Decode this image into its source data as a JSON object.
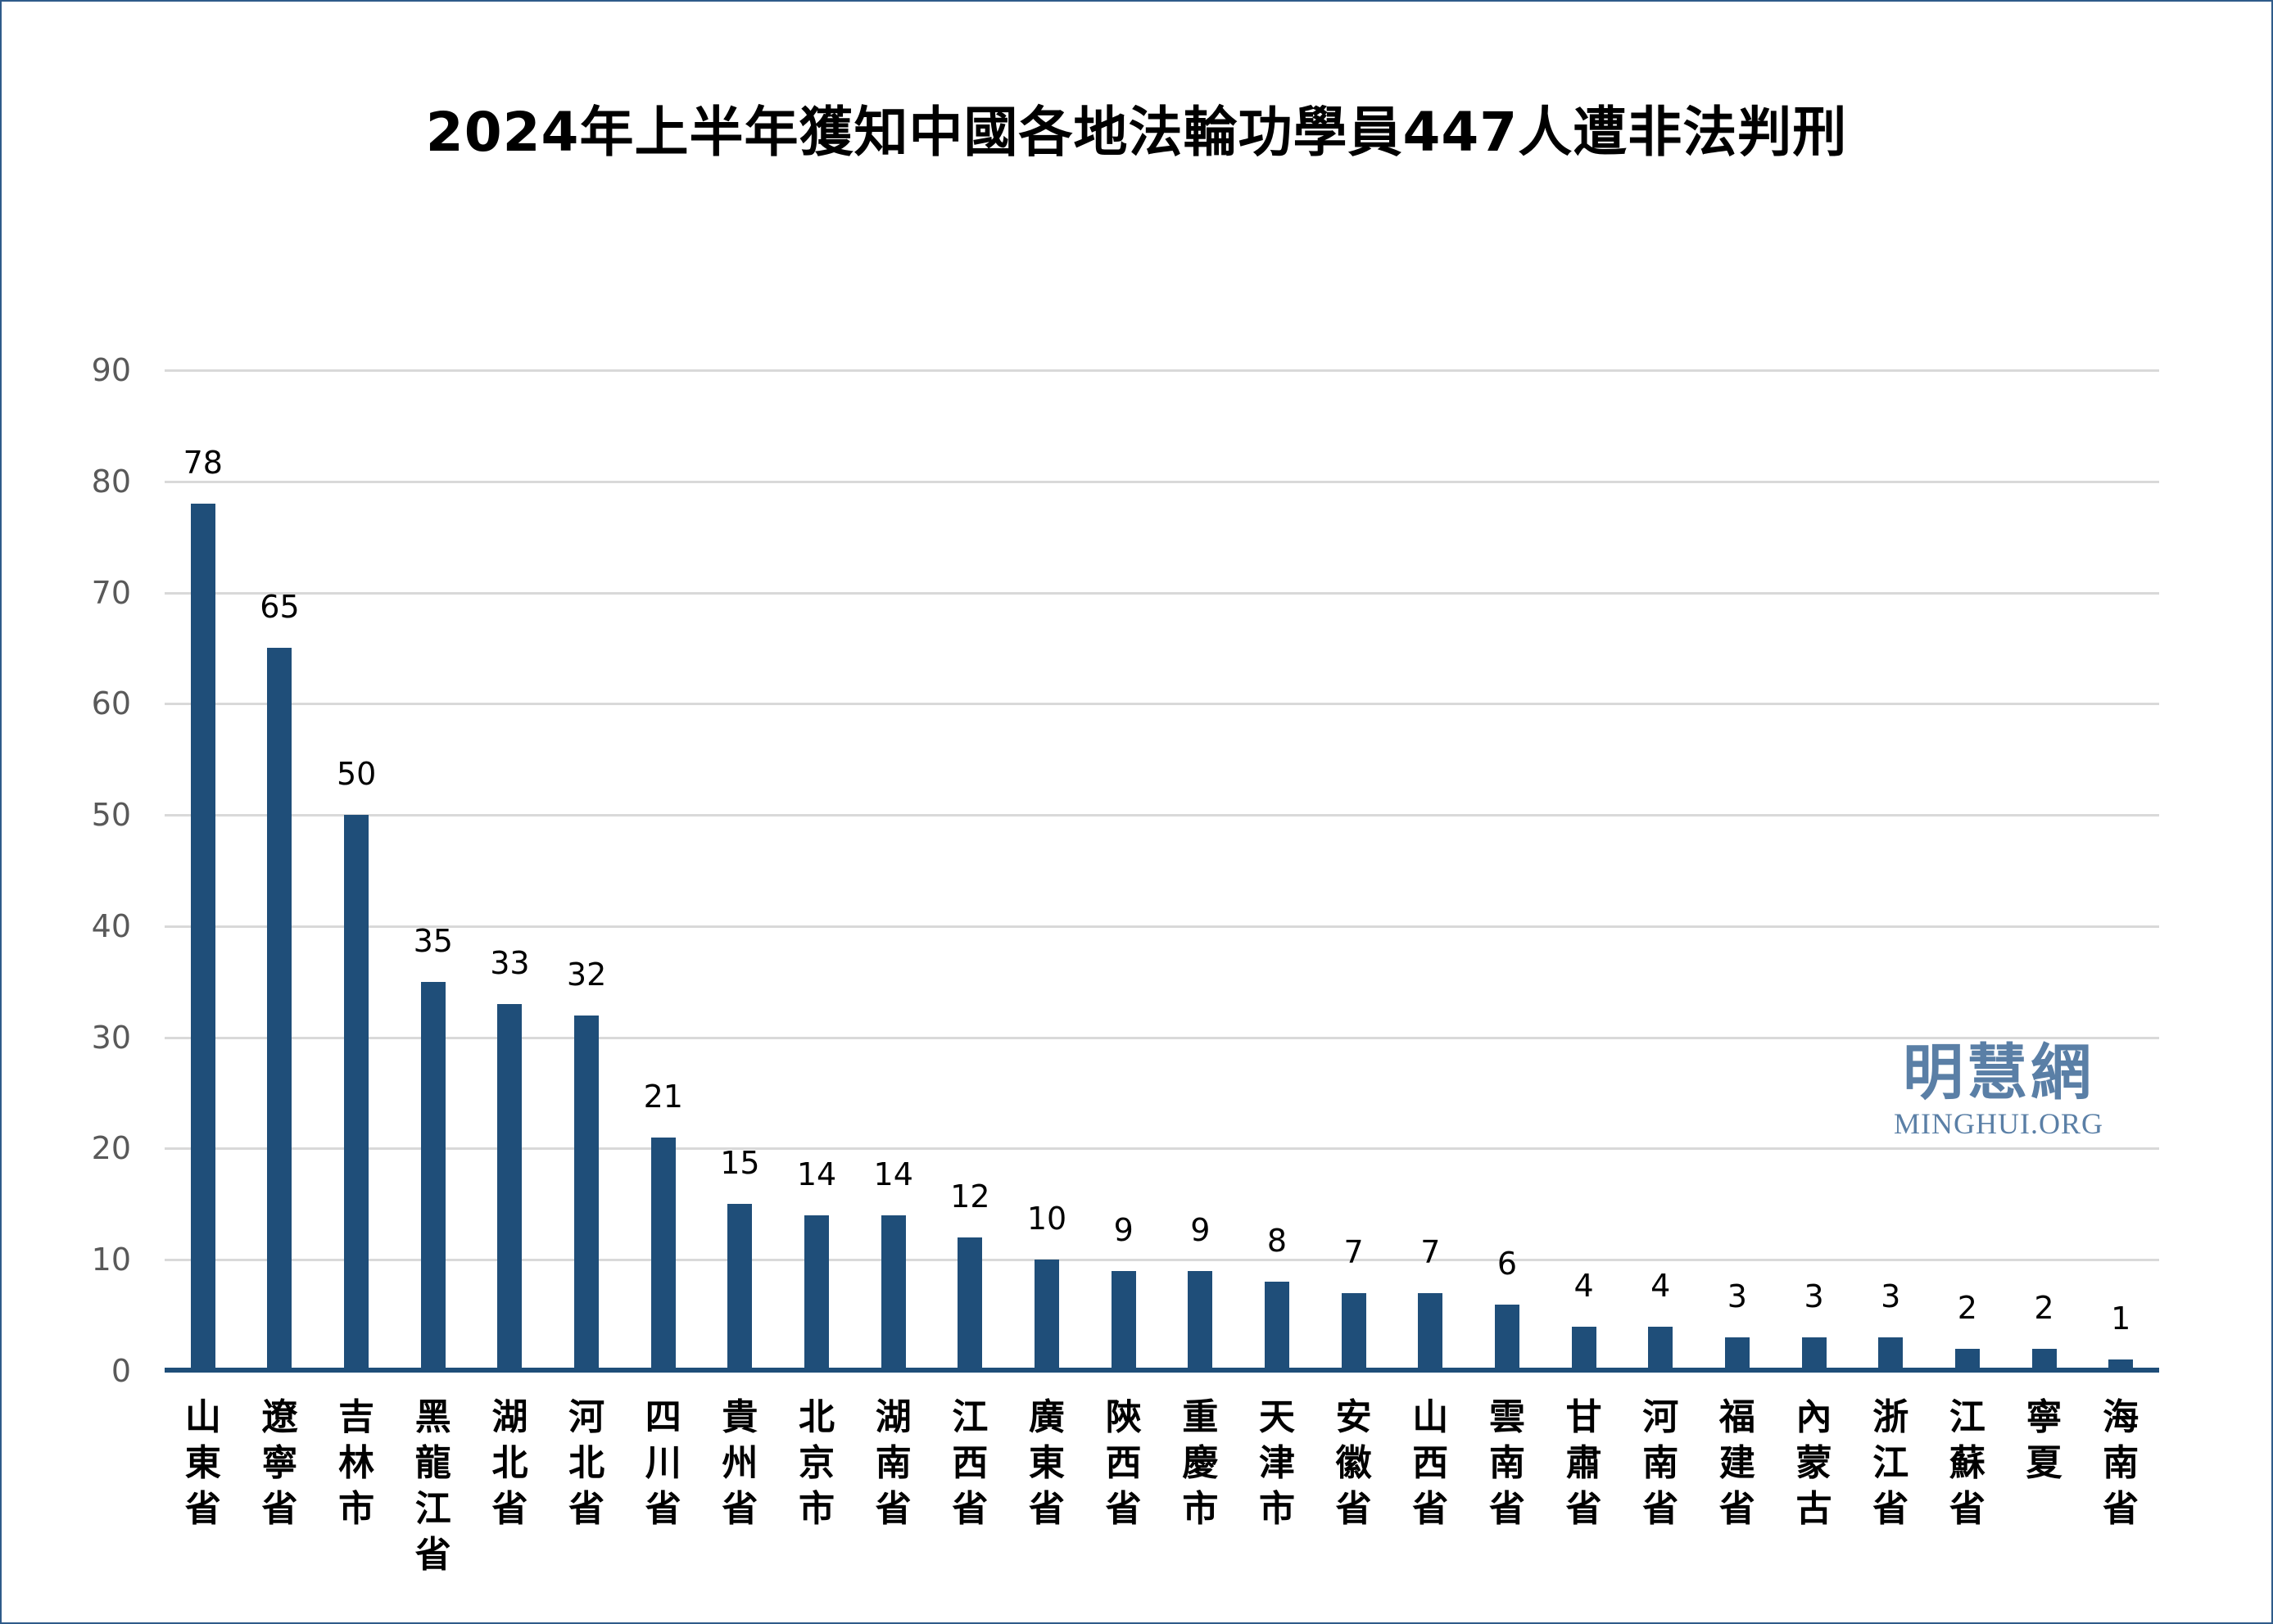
{
  "chart_data": {
    "type": "bar",
    "title": "2024年上半年獲知中國各地法輪功學員447人遭非法判刑",
    "xlabel": "",
    "ylabel": "",
    "ylim": [
      0,
      90
    ],
    "yticks": [
      0,
      10,
      20,
      30,
      40,
      50,
      60,
      70,
      80,
      90
    ],
    "grid": true,
    "legend": null,
    "bar_color": "#1f4e79",
    "categories": [
      "山東省",
      "遼寧省",
      "吉林市",
      "黑龍江省",
      "湖北省",
      "河北省",
      "四川省",
      "貴州省",
      "北京市",
      "湖南省",
      "江西省",
      "廣東省",
      "陝西省",
      "重慶市",
      "天津市",
      "安徽省",
      "山西省",
      "雲南省",
      "甘肅省",
      "河南省",
      "福建省",
      "內蒙古",
      "浙江省",
      "江蘇省",
      "寧夏",
      "海南省"
    ],
    "values": [
      78,
      65,
      50,
      35,
      33,
      32,
      21,
      15,
      14,
      14,
      12,
      10,
      9,
      9,
      8,
      7,
      7,
      6,
      4,
      4,
      3,
      3,
      3,
      2,
      2,
      1
    ]
  },
  "watermark": {
    "cn": "明慧網",
    "en": "MINGHUI.ORG",
    "color": "#5a7fa6"
  },
  "colors": {
    "border": "#2f5b8a",
    "grid": "#d9d9d9",
    "tick_text": "#595959"
  }
}
